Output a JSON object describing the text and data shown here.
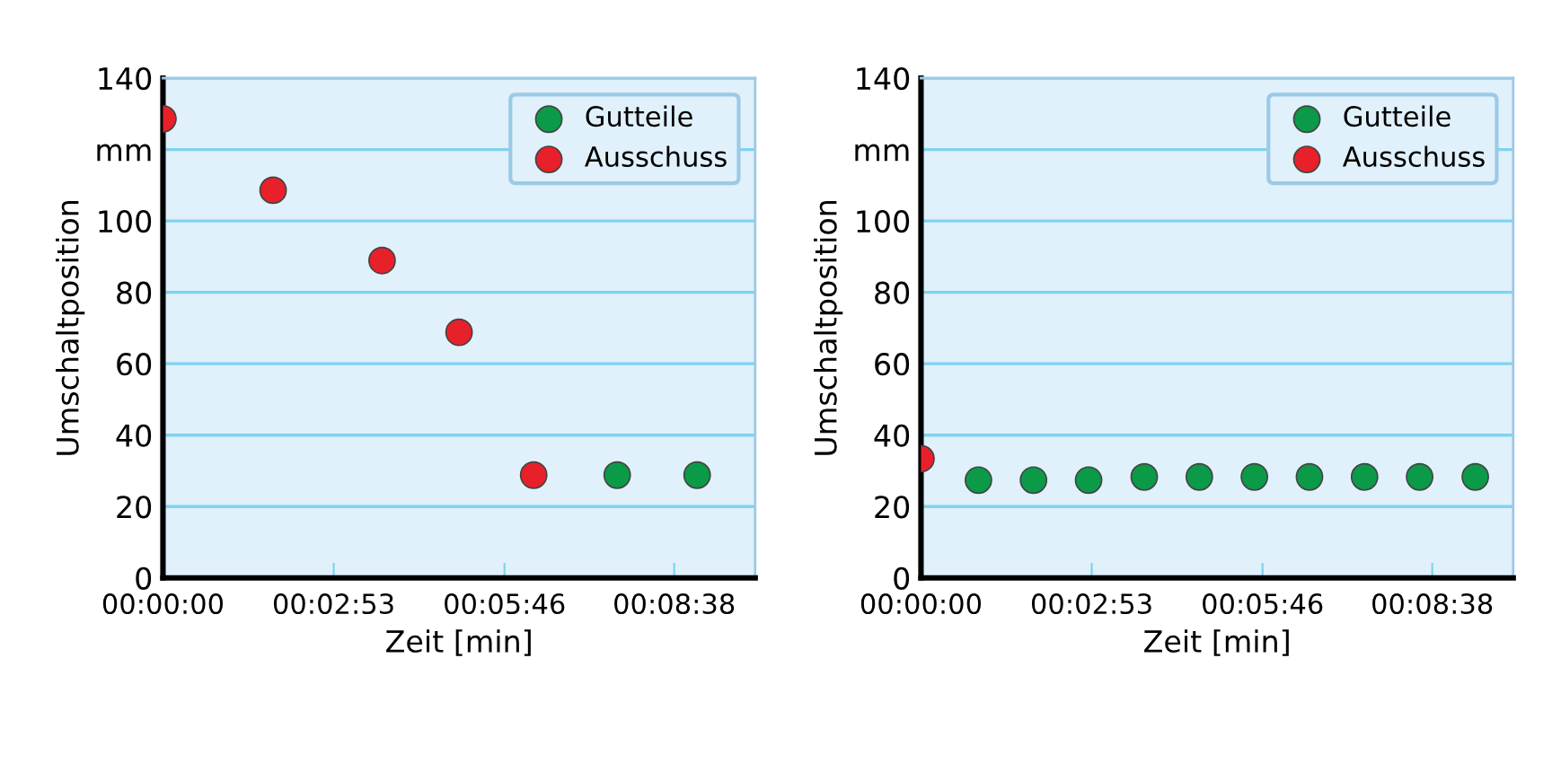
{
  "chart_data": [
    {
      "type": "scatter",
      "xlabel": "Zeit [min]",
      "ylabel": "Umschaltposition",
      "xlim": [
        0,
        10
      ],
      "xticks": [
        {
          "value": 0,
          "label": "00:00:00"
        },
        {
          "value": 2.883,
          "label": "00:02:53"
        },
        {
          "value": 5.767,
          "label": "00:05:46"
        },
        {
          "value": 8.633,
          "label": "00:08:38"
        }
      ],
      "ylim": [
        0,
        140
      ],
      "yticks": [
        0,
        20,
        40,
        60,
        80,
        100,
        {
          "value": 120,
          "label": "mm"
        },
        140
      ],
      "grid": "y",
      "legend": "top right",
      "marker": "circle",
      "series": [
        {
          "name": "Gutteile",
          "color": "#0a9a48",
          "x": [
            7.67,
            9.02
          ],
          "values": [
            28.8,
            28.8
          ]
        },
        {
          "name": "Ausschuss",
          "color": "#e8202a",
          "x": [
            0,
            1.86,
            3.7,
            5.0,
            6.26
          ],
          "values": [
            128.6,
            108.6,
            88.9,
            68.8,
            28.8
          ]
        }
      ]
    },
    {
      "type": "scatter",
      "xlabel": "Zeit [min]",
      "ylabel": "Umschaltposition",
      "xlim": [
        0,
        10
      ],
      "xticks": [
        {
          "value": 0,
          "label": "00:00:00"
        },
        {
          "value": 2.883,
          "label": "00:02:53"
        },
        {
          "value": 5.767,
          "label": "00:05:46"
        },
        {
          "value": 8.633,
          "label": "00:08:38"
        }
      ],
      "ylim": [
        0,
        140
      ],
      "yticks": [
        0,
        20,
        40,
        60,
        80,
        100,
        {
          "value": 120,
          "label": "mm"
        },
        140
      ],
      "grid": "y",
      "legend": "top right",
      "marker": "circle",
      "series": [
        {
          "name": "Gutteile",
          "color": "#0a9a48",
          "x": [
            0.97,
            1.9,
            2.83,
            3.77,
            4.7,
            5.63,
            6.56,
            7.49,
            8.42,
            9.36
          ],
          "values": [
            27.4,
            27.4,
            27.4,
            28.3,
            28.3,
            28.3,
            28.3,
            28.3,
            28.3,
            28.3
          ]
        },
        {
          "name": "Ausschuss",
          "color": "#e8202a",
          "x": [
            0
          ],
          "values": [
            33.4
          ]
        }
      ]
    }
  ]
}
